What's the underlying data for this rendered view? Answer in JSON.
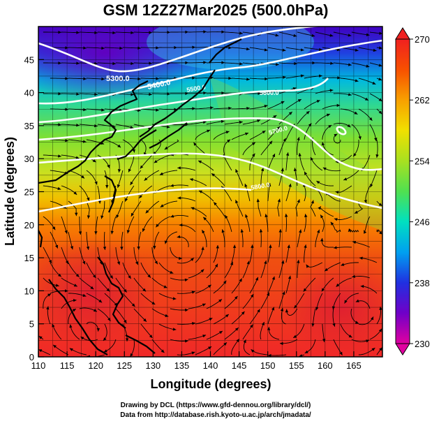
{
  "title": "GSM 12Z27Mar2025 (500.0hPa)",
  "x_axis": {
    "label": "Longitude (degrees)",
    "range": [
      110,
      170
    ],
    "ticks": [
      "110",
      "115",
      "120",
      "125",
      "130",
      "135",
      "140",
      "145",
      "150",
      "155",
      "160",
      "165"
    ]
  },
  "y_axis": {
    "label": "Latitude  (degrees)",
    "range": [
      0,
      50
    ],
    "ticks": [
      "0",
      "5",
      "10",
      "15",
      "20",
      "25",
      "30",
      "35",
      "40",
      "45"
    ]
  },
  "colorbar": {
    "min": 230,
    "max": 270,
    "labels": [
      "270",
      "262",
      "254",
      "246",
      "238",
      "230"
    ],
    "colors": [
      "#e0007a",
      "#7000c8",
      "#2030e0",
      "#00a0f0",
      "#00e0c0",
      "#50e050",
      "#a8e020",
      "#f0e000",
      "#f8a000",
      "#f85000",
      "#f02020"
    ]
  },
  "contours": {
    "color": "#ffffff",
    "labels": [
      "5300.0",
      "5400.0",
      "5500.0",
      "5600.0",
      "5700.0",
      "5800.0"
    ]
  },
  "footer": {
    "line1": "Drawing by DCL (https://www.gfd-dennou.org/library/dcl/)",
    "line2": "Data from http://database.rish.kyoto-u.ac.jp/arch/jmadata/"
  },
  "map_data": {
    "field": "500hPa temperature (K) with geopotential height contours (m) and wind streamlines",
    "features": [
      "coastlines",
      "streamlines",
      "height-contours",
      "temperature-shading"
    ]
  }
}
